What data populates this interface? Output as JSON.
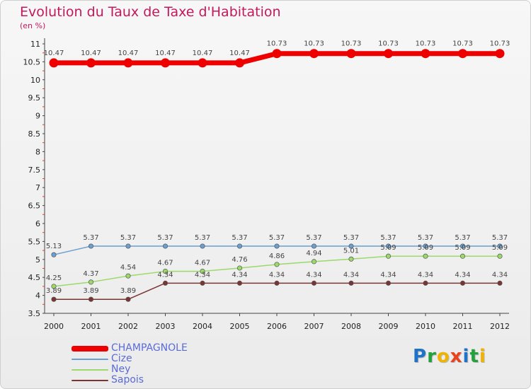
{
  "title": "Evolution du Taux de Taxe d'Habitation",
  "subtitle": "(en %)",
  "logo": {
    "letters": [
      {
        "ch": "P",
        "color": "#1e73c8"
      },
      {
        "ch": "r",
        "color": "#24a03c"
      },
      {
        "ch": "o",
        "color": "#f0b400"
      },
      {
        "ch": "x",
        "color": "#e8421e"
      },
      {
        "ch": "i",
        "color": "#1e73c8"
      },
      {
        "ch": "t",
        "color": "#24a03c"
      },
      {
        "ch": "i",
        "color": "#f0b400"
      }
    ]
  },
  "chart_data": {
    "type": "line",
    "x": [
      "2000",
      "2001",
      "2002",
      "2003",
      "2004",
      "2005",
      "2006",
      "2007",
      "2008",
      "2009",
      "2010",
      "2011",
      "2012"
    ],
    "ylim": [
      3.5,
      11
    ],
    "yticks": [
      3.5,
      4,
      4.5,
      5,
      5.5,
      6,
      6.5,
      7,
      7.5,
      8,
      8.5,
      9,
      9.5,
      10,
      10.5,
      11
    ],
    "ytick_labels": [
      "3.5",
      "4",
      "4.5",
      "5",
      "5.5",
      "6",
      "6.5",
      "7",
      "7.5",
      "8",
      "8.5",
      "9",
      "9.5",
      "10",
      "10.5",
      "11"
    ],
    "grid": false,
    "legend": "bottom-left",
    "series": [
      {
        "name": "CHAMPAGNOLE",
        "color": "#ee0000",
        "width": 7,
        "marker": 6.5,
        "values": [
          10.47,
          10.47,
          10.47,
          10.47,
          10.47,
          10.47,
          10.73,
          10.73,
          10.73,
          10.73,
          10.73,
          10.73,
          10.73
        ],
        "labels": [
          "10.47",
          "10.47",
          "10.47",
          "10.47",
          "10.47",
          "10.47",
          "10.73",
          "10.73",
          "10.73",
          "10.73",
          "10.73",
          "10.73",
          "10.73"
        ]
      },
      {
        "name": "Cize",
        "color": "#6a9fd0",
        "width": 1.5,
        "marker": 3.2,
        "values": [
          5.13,
          5.37,
          5.37,
          5.37,
          5.37,
          5.37,
          5.37,
          5.37,
          5.37,
          5.37,
          5.37,
          5.37,
          5.37
        ],
        "labels": [
          "5.13",
          "5.37",
          "5.37",
          "5.37",
          "5.37",
          "5.37",
          "5.37",
          "5.37",
          "5.37",
          "5.37",
          "5.37",
          "5.37",
          "5.37"
        ]
      },
      {
        "name": "Ney",
        "color": "#9bd96a",
        "width": 1.5,
        "marker": 3.2,
        "values": [
          4.25,
          4.37,
          4.54,
          4.67,
          4.67,
          4.76,
          4.86,
          4.94,
          5.01,
          5.09,
          5.09,
          5.09,
          5.09
        ],
        "labels": [
          "4.25",
          "4.37",
          "4.54",
          "4.67",
          "4.67",
          "4.76",
          "4.86",
          "4.94",
          "5.01",
          "5.09",
          "5.09",
          "5.09",
          "5.09"
        ]
      },
      {
        "name": "Sapois",
        "color": "#7a3434",
        "width": 1.5,
        "marker": 3.2,
        "values": [
          3.89,
          3.89,
          3.89,
          4.34,
          4.34,
          4.34,
          4.34,
          4.34,
          4.34,
          4.34,
          4.34,
          4.34,
          4.34
        ],
        "labels": [
          "3.89",
          "3.89",
          "3.89",
          "4.34",
          "4.34",
          "4.34",
          "4.34",
          "4.34",
          "4.34",
          "4.34",
          "4.34",
          "4.34",
          "4.34"
        ]
      }
    ]
  }
}
